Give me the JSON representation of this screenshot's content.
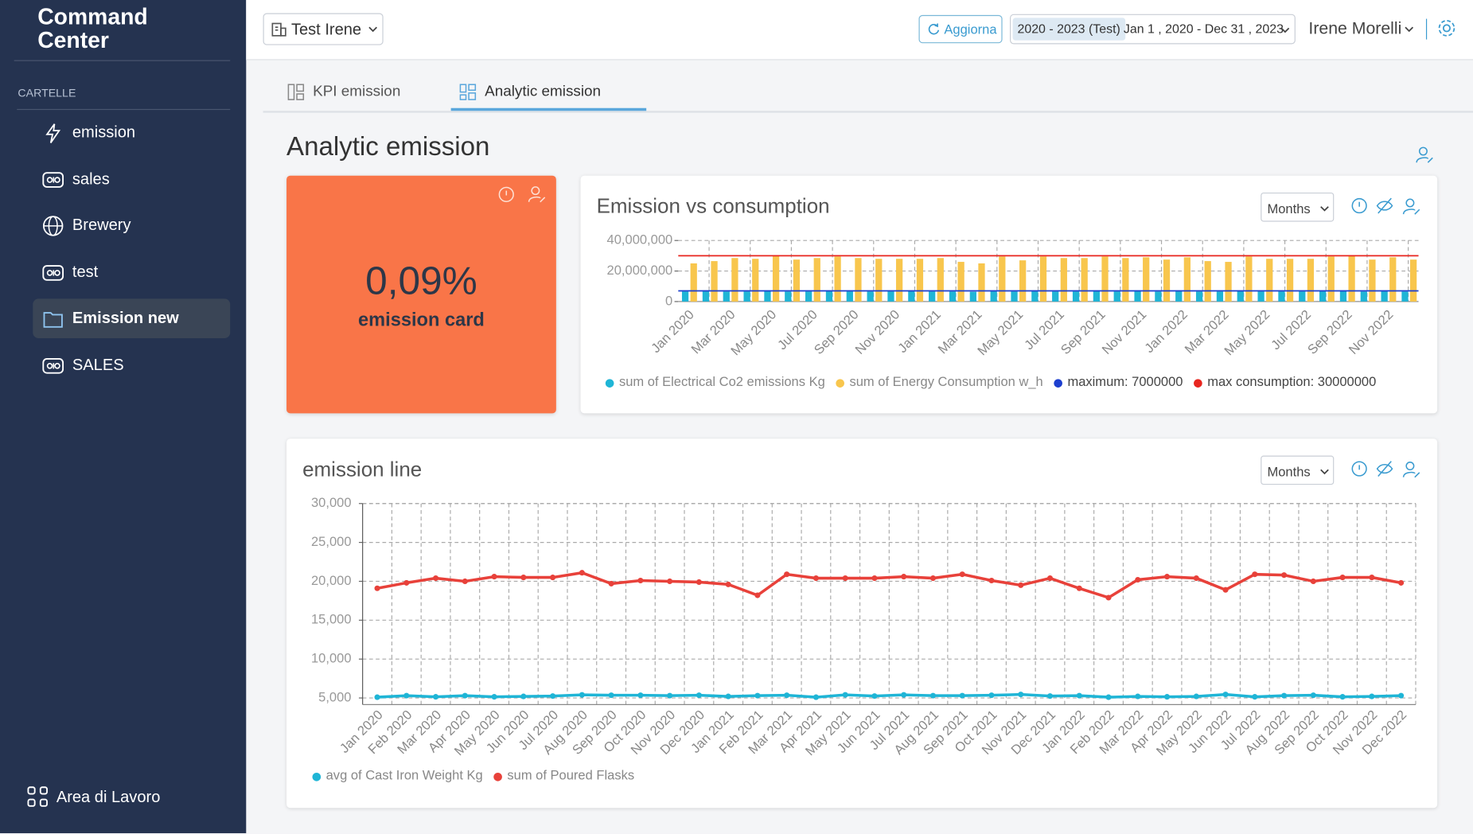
{
  "sidebar": {
    "title": "Command Center",
    "section": "CARTELLE",
    "items": [
      "emission",
      "sales",
      "Brewery",
      "test",
      "Emission new",
      "SALES"
    ],
    "active_item": 4,
    "footer": "Area di Lavoro"
  },
  "topbar": {
    "workspace": "Test Irene",
    "refresh": "Aggiorna",
    "period_tag": "2020 - 2023 (Test)",
    "period_range": "Jan 1 , 2020 - Dec 31 , 2023",
    "user": "Irene Morelli"
  },
  "tabs": {
    "items": [
      "KPI emission",
      "Analytic emission"
    ],
    "active": 1
  },
  "page_title": "Analytic emission",
  "kpi_card": {
    "value": "0,09%",
    "label": "emission card",
    "color": "#f97548"
  },
  "chart_data": [
    {
      "type": "bar",
      "title": "Emission vs consumption",
      "granularity": "Months",
      "categories": [
        "Jan 2020",
        null,
        "Mar 2020",
        null,
        "May 2020",
        null,
        "Jul 2020",
        null,
        "Sep 2020",
        null,
        "Nov 2020",
        null,
        "Jan 2021",
        null,
        "Mar 2021",
        null,
        "May 2021",
        null,
        "Jul 2021",
        null,
        "Sep 2021",
        null,
        "Nov 2021",
        null,
        "Jan 2022",
        null,
        "Mar 2022",
        null,
        "May 2022",
        null,
        "Jul 2022",
        null,
        "Sep 2022",
        null,
        "Nov 2022",
        null
      ],
      "series": [
        {
          "name": "sum of Electrical Co2 emissions Kg",
          "color": "#1fb5d6",
          "values": [
            6600000,
            6700000,
            6500000,
            6600000,
            6800000,
            6500000,
            6600000,
            6700000,
            6600000,
            6500000,
            6600000,
            6700000,
            6600000,
            6500000,
            6400000,
            6700000,
            6600000,
            6700000,
            6600000,
            6600000,
            6700000,
            6600000,
            6700000,
            6500000,
            6700000,
            6500000,
            6500000,
            6700000,
            6600000,
            6600000,
            6600000,
            6700000,
            6800000,
            6500000,
            6700000,
            6500000
          ]
        },
        {
          "name": "sum of Energy Consumption w_h",
          "color": "#f8c64d",
          "values": [
            25000000,
            26500000,
            28500000,
            28000000,
            30000000,
            27500000,
            28500000,
            29500000,
            28500000,
            28000000,
            28000000,
            28000000,
            28500000,
            26000000,
            25000000,
            29500000,
            27000000,
            29500000,
            28500000,
            28500000,
            29500000,
            28500000,
            29000000,
            27500000,
            29000000,
            26500000,
            26000000,
            29500000,
            28000000,
            28000000,
            28000000,
            29500000,
            30000000,
            27500000,
            29000000,
            27500000
          ]
        }
      ],
      "reference_lines": [
        {
          "name": "maximum: 7000000",
          "value": 7000000,
          "color": "#1d3fcf"
        },
        {
          "name": "max consumption: 30000000",
          "value": 30000000,
          "color": "#e8261f"
        }
      ],
      "ylim": [
        0,
        40000000
      ],
      "yticks": [
        0,
        {
          "value": 20000000,
          "label": "20,000,000"
        },
        {
          "value": 40000000,
          "label": "40,000,000"
        }
      ],
      "grid": true
    },
    {
      "type": "line",
      "title": "emission line",
      "granularity": "Months",
      "categories": [
        "Jan 2020",
        "Feb 2020",
        "Mar 2020",
        "Apr 2020",
        "May 2020",
        "Jun 2020",
        "Jul 2020",
        "Aug 2020",
        "Sep 2020",
        "Oct 2020",
        "Nov 2020",
        "Dec 2020",
        "Jan 2021",
        "Feb 2021",
        "Mar 2021",
        "Apr 2021",
        "May 2021",
        "Jun 2021",
        "Jul 2021",
        "Aug 2021",
        "Sep 2021",
        "Oct 2021",
        "Nov 2021",
        "Dec 2021",
        "Jan 2022",
        "Feb 2022",
        "Mar 2022",
        "Apr 2022",
        "May 2022",
        "Jun 2022",
        "Jul 2022",
        "Aug 2022",
        "Sep 2022",
        "Oct 2022",
        "Nov 2022",
        "Dec 2022"
      ],
      "series": [
        {
          "name": "avg of Cast Iron Weight Kg",
          "color": "#1fb5d6",
          "values": [
            5100,
            5300,
            5150,
            5300,
            5150,
            5200,
            5250,
            5400,
            5350,
            5350,
            5300,
            5350,
            5200,
            5300,
            5350,
            5100,
            5400,
            5250,
            5400,
            5300,
            5300,
            5350,
            5450,
            5250,
            5300,
            5100,
            5200,
            5150,
            5200,
            5450,
            5150,
            5300,
            5350,
            5150,
            5200,
            5300
          ]
        },
        {
          "name": "sum of Poured Flasks",
          "color": "#e8413a",
          "values": [
            19100,
            19800,
            20400,
            20000,
            20600,
            20500,
            20500,
            21100,
            19700,
            20100,
            20000,
            19900,
            19600,
            18200,
            20900,
            20400,
            20400,
            20400,
            20600,
            20400,
            20900,
            20100,
            19500,
            20400,
            19100,
            17900,
            20200,
            20600,
            20400,
            18900,
            20900,
            20800,
            20000,
            20500,
            20500,
            19800
          ]
        }
      ],
      "ylim": [
        4150,
        30000
      ],
      "yticks": [
        {
          "value": 5000,
          "label": "5,000"
        },
        {
          "value": 10000,
          "label": "10,000"
        },
        {
          "value": 15000,
          "label": "15,000"
        },
        {
          "value": 20000,
          "label": "20,000"
        },
        {
          "value": 25000,
          "label": "25,000"
        },
        {
          "value": 30000,
          "label": "30,000"
        }
      ],
      "grid": true
    }
  ]
}
